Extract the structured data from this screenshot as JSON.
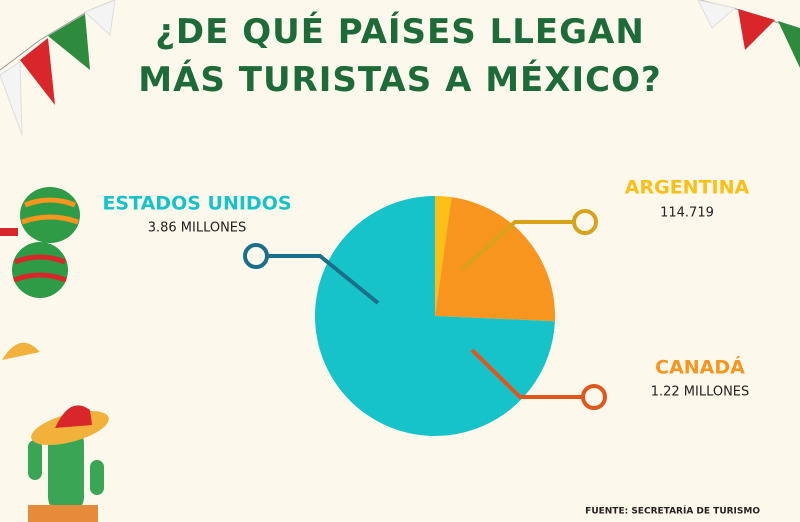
{
  "chart_data": {
    "type": "pie",
    "title": "¿DE QUÉ PAÍSES LLEGAN MÁS TURISTAS A MÉXICO?",
    "categories": [
      "ARGENTINA",
      "CANADÁ",
      "ESTADOS UNIDOS"
    ],
    "values": [
      114719,
      1220000,
      3860000
    ],
    "value_labels": [
      "114.719",
      "1.22 MILLONES",
      "3.86 MILLONES"
    ],
    "colors": [
      "#fbbf16",
      "#f7951e",
      "#16c3c9"
    ],
    "source": "FUENTE: SECRETARÍA DE TURISMO"
  }
}
